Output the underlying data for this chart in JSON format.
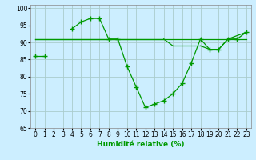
{
  "xlabel": "Humidité relative (%)",
  "background_color": "#cceeff",
  "grid_color": "#aacccc",
  "line_color": "#009900",
  "ylim": [
    65,
    101
  ],
  "xlim": [
    -0.5,
    23.5
  ],
  "yticks": [
    65,
    70,
    75,
    80,
    85,
    90,
    95,
    100
  ],
  "xticks": [
    0,
    1,
    2,
    3,
    4,
    5,
    6,
    7,
    8,
    9,
    10,
    11,
    12,
    13,
    14,
    15,
    16,
    17,
    18,
    19,
    20,
    21,
    22,
    23
  ],
  "lines": [
    {
      "x": [
        0,
        1,
        2,
        3,
        4,
        5,
        6,
        7,
        8,
        9,
        10,
        11,
        12,
        13,
        14,
        15,
        16,
        17,
        18,
        19,
        20,
        21,
        22,
        23
      ],
      "y": [
        86,
        86,
        null,
        null,
        94,
        96,
        97,
        97,
        91,
        91,
        83,
        77,
        71,
        72,
        73,
        75,
        78,
        84,
        91,
        88,
        88,
        91,
        91,
        93
      ],
      "marker": true
    },
    {
      "x": [
        0,
        1,
        2,
        3,
        4,
        5,
        6,
        7,
        8,
        9,
        10,
        11,
        12,
        13,
        14,
        15,
        16,
        17,
        18,
        19,
        20,
        21,
        22,
        23
      ],
      "y": [
        91,
        91,
        91,
        91,
        91,
        95,
        96,
        91,
        91,
        91,
        91,
        91,
        91,
        91,
        91,
        90,
        90,
        90,
        90,
        91,
        91,
        91,
        91,
        93
      ],
      "marker": false
    },
    {
      "x": [
        0,
        1,
        2,
        3,
        4,
        5,
        6,
        7,
        8,
        9,
        10,
        11,
        12,
        13,
        14,
        15,
        16,
        17,
        18,
        19,
        20,
        21,
        22,
        23
      ],
      "y": [
        91,
        91,
        91,
        91,
        91,
        91,
        91,
        91,
        91,
        91,
        91,
        91,
        91,
        91,
        91,
        89,
        89,
        89,
        89,
        88,
        88,
        91,
        91,
        93
      ],
      "marker": false
    },
    {
      "x": [
        15,
        16,
        17,
        18,
        19,
        20,
        21,
        22,
        23
      ],
      "y": [
        89,
        89,
        89,
        89,
        88,
        88,
        91,
        91,
        93
      ],
      "marker": false
    }
  ]
}
